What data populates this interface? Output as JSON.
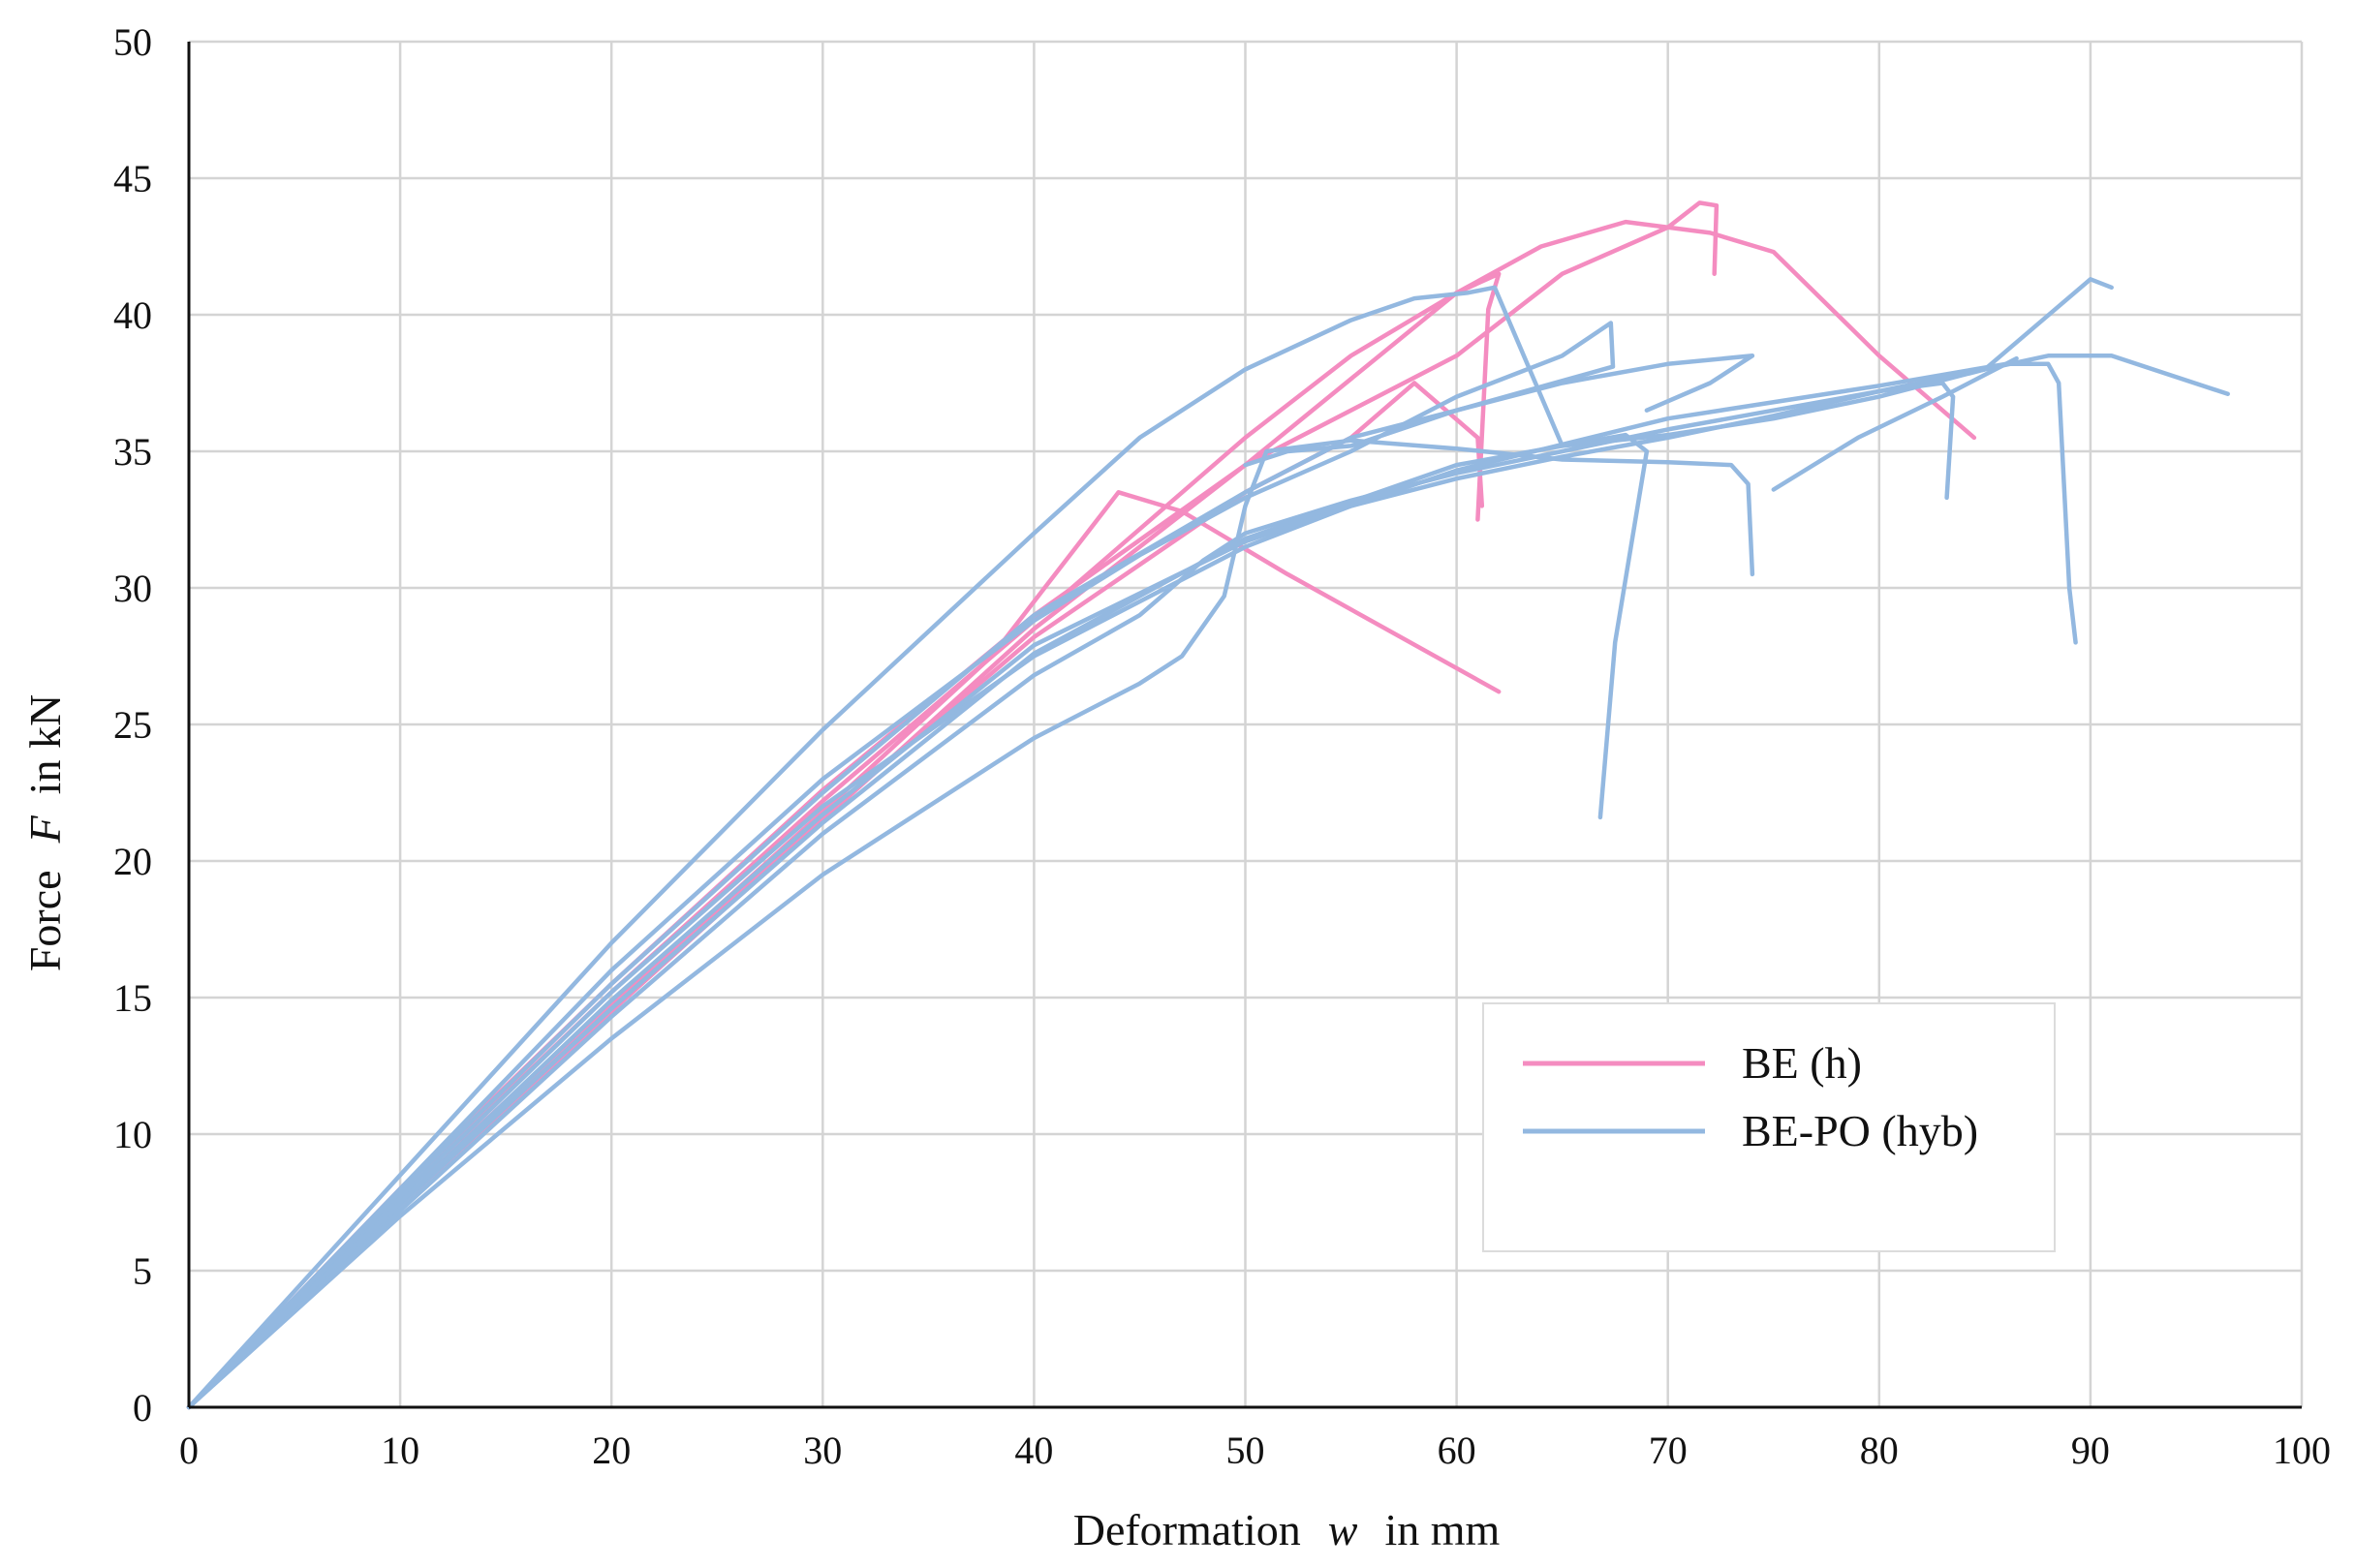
{
  "chart_data": {
    "type": "line",
    "title": "",
    "xlabel": {
      "prefix": "Deformation",
      "symbol": "w",
      "suffix": "in mm"
    },
    "ylabel": {
      "prefix": "Force",
      "symbol": "F",
      "suffix": "in kN"
    },
    "xlim": [
      0,
      100
    ],
    "ylim": [
      0,
      50
    ],
    "xticks": [
      0,
      10,
      20,
      30,
      40,
      50,
      60,
      70,
      80,
      90,
      100
    ],
    "yticks": [
      0,
      5,
      10,
      15,
      20,
      25,
      30,
      35,
      40,
      45,
      50
    ],
    "grid": true,
    "legend": {
      "placement": "lower-right",
      "entries": [
        {
          "label": "BE (h)",
          "color": "#f48cc0"
        },
        {
          "label": "BE-PO (hyb)",
          "color": "#93b8e0"
        }
      ]
    },
    "series": [
      {
        "name": "BE (h)",
        "color": "#f48cc0",
        "points": [
          [
            0,
            0
          ],
          [
            10,
            8
          ],
          [
            20,
            15.5
          ],
          [
            30,
            22.6
          ],
          [
            40,
            29
          ],
          [
            50,
            34.5
          ],
          [
            60,
            40.8
          ],
          [
            62,
            41.5
          ],
          [
            61.5,
            40.2
          ],
          [
            61,
            32.5
          ]
        ]
      },
      {
        "name": "BE (h)",
        "color": "#f48cc0",
        "points": [
          [
            0,
            0
          ],
          [
            10,
            7.6
          ],
          [
            20,
            14.8
          ],
          [
            30,
            21.8
          ],
          [
            38,
            27.5
          ],
          [
            44,
            33.5
          ],
          [
            47,
            32.8
          ],
          [
            52,
            30.5
          ],
          [
            62,
            26.2
          ]
        ]
      },
      {
        "name": "BE (h)",
        "color": "#f48cc0",
        "points": [
          [
            0,
            0
          ],
          [
            10,
            7.4
          ],
          [
            20,
            14.5
          ],
          [
            30,
            21.5
          ],
          [
            40,
            28.5
          ],
          [
            50,
            34.5
          ],
          [
            60,
            38.5
          ],
          [
            65,
            41.5
          ],
          [
            70,
            43.2
          ],
          [
            71.5,
            44.1
          ],
          [
            72.3,
            44
          ],
          [
            72.2,
            41.5
          ]
        ]
      },
      {
        "name": "BE (h)",
        "color": "#f48cc0",
        "points": [
          [
            0,
            0
          ],
          [
            10,
            7.8
          ],
          [
            20,
            15.2
          ],
          [
            30,
            22.2
          ],
          [
            40,
            28.8
          ],
          [
            50,
            35.5
          ],
          [
            55,
            38.5
          ],
          [
            60,
            40.8
          ],
          [
            64,
            42.5
          ],
          [
            68,
            43.4
          ],
          [
            72,
            43
          ],
          [
            75,
            42.3
          ],
          [
            80,
            38.5
          ],
          [
            84.5,
            35.5
          ]
        ]
      },
      {
        "name": "BE (h)",
        "color": "#f48cc0",
        "points": [
          [
            0,
            0
          ],
          [
            10,
            7.5
          ],
          [
            20,
            14.7
          ],
          [
            30,
            21.6
          ],
          [
            40,
            28.2
          ],
          [
            50,
            33.5
          ],
          [
            55,
            35.5
          ],
          [
            58,
            37.5
          ],
          [
            61,
            35.5
          ],
          [
            61.2,
            33
          ]
        ]
      },
      {
        "name": "BE-PO (hyb)",
        "color": "#93b8e0",
        "points": [
          [
            0,
            0
          ],
          [
            10,
            8.5
          ],
          [
            20,
            17
          ],
          [
            30,
            24.8
          ],
          [
            40,
            32
          ],
          [
            45,
            35.5
          ],
          [
            50,
            38
          ],
          [
            55,
            39.8
          ],
          [
            58,
            40.6
          ],
          [
            60.5,
            40.8
          ],
          [
            61.8,
            41
          ],
          [
            65,
            35.2
          ],
          [
            70,
            35.6
          ],
          [
            75,
            36.2
          ],
          [
            80,
            37
          ],
          [
            85,
            38
          ],
          [
            88,
            38.5
          ],
          [
            91,
            38.5
          ],
          [
            96.5,
            37.1
          ]
        ]
      },
      {
        "name": "BE-PO (hyb)",
        "color": "#93b8e0",
        "points": [
          [
            0,
            0
          ],
          [
            10,
            8
          ],
          [
            20,
            16
          ],
          [
            30,
            23
          ],
          [
            40,
            28.8
          ],
          [
            45,
            31.2
          ],
          [
            50,
            33.3
          ],
          [
            55,
            35
          ],
          [
            60,
            37
          ],
          [
            65,
            38.5
          ],
          [
            67.3,
            39.7
          ],
          [
            67.4,
            38.1
          ],
          [
            60,
            36.5
          ],
          [
            55,
            35.2
          ],
          [
            52,
            35
          ],
          [
            50,
            34.5
          ]
        ]
      },
      {
        "name": "BE-PO (hyb)",
        "color": "#93b8e0",
        "points": [
          [
            0,
            0
          ],
          [
            10,
            7.7
          ],
          [
            20,
            15.2
          ],
          [
            30,
            22
          ],
          [
            40,
            27.5
          ],
          [
            50,
            31.5
          ],
          [
            55,
            33
          ],
          [
            60,
            34
          ],
          [
            65,
            34.8
          ],
          [
            70,
            35.5
          ],
          [
            75,
            36.3
          ],
          [
            80,
            37.2
          ],
          [
            85,
            38
          ],
          [
            90,
            41.3
          ],
          [
            91,
            41
          ]
        ]
      },
      {
        "name": "BE-PO (hyb)",
        "color": "#93b8e0",
        "points": [
          [
            0,
            0
          ],
          [
            10,
            7
          ],
          [
            20,
            13.5
          ],
          [
            30,
            19.5
          ],
          [
            40,
            24.5
          ],
          [
            45,
            26.5
          ],
          [
            47,
            27.5
          ],
          [
            49,
            29.7
          ],
          [
            50,
            33
          ],
          [
            51,
            35
          ],
          [
            55,
            35.4
          ],
          [
            60,
            35.1
          ],
          [
            65,
            34.7
          ],
          [
            70,
            34.6
          ],
          [
            73,
            34.5
          ],
          [
            73.8,
            33.8
          ],
          [
            74,
            30.5
          ]
        ]
      },
      {
        "name": "BE-PO (hyb)",
        "color": "#93b8e0",
        "points": [
          [
            0,
            0
          ],
          [
            10,
            7.2
          ],
          [
            20,
            14.3
          ],
          [
            30,
            21
          ],
          [
            40,
            26.8
          ],
          [
            45,
            29
          ],
          [
            48,
            31
          ],
          [
            50,
            32
          ],
          [
            55,
            33.2
          ],
          [
            60,
            34.2
          ],
          [
            65,
            35
          ],
          [
            70,
            35.8
          ],
          [
            75,
            36.5
          ],
          [
            80,
            37.2
          ],
          [
            83,
            37.5
          ],
          [
            83.5,
            37
          ],
          [
            83.2,
            33.3
          ]
        ]
      },
      {
        "name": "BE-PO (hyb)",
        "color": "#93b8e0",
        "points": [
          [
            0,
            0
          ],
          [
            10,
            7.4
          ],
          [
            20,
            14.6
          ],
          [
            30,
            21.4
          ],
          [
            40,
            27.6
          ],
          [
            50,
            31.8
          ],
          [
            60,
            34.5
          ],
          [
            65,
            35.2
          ],
          [
            68,
            35.6
          ],
          [
            69,
            35
          ],
          [
            67.5,
            28
          ],
          [
            66.8,
            21.6
          ]
        ]
      },
      {
        "name": "BE-PO (hyb)",
        "color": "#93b8e0",
        "points": [
          [
            0,
            0
          ],
          [
            10,
            7.9
          ],
          [
            20,
            15.5
          ],
          [
            30,
            22.5
          ],
          [
            40,
            29
          ],
          [
            50,
            33.5
          ],
          [
            55,
            35.5
          ],
          [
            60,
            36.5
          ],
          [
            65,
            37.5
          ],
          [
            70,
            38.2
          ],
          [
            74,
            38.5
          ],
          [
            72,
            37.5
          ],
          [
            69,
            36.5
          ]
        ]
      },
      {
        "name": "BE-PO (hyb)",
        "color": "#93b8e0",
        "points": [
          [
            0,
            0
          ],
          [
            10,
            7.5
          ],
          [
            20,
            14.9
          ],
          [
            30,
            21.7
          ],
          [
            40,
            27.9
          ],
          [
            50,
            31.7
          ],
          [
            60,
            34.3
          ],
          [
            70,
            36.2
          ],
          [
            80,
            37.4
          ],
          [
            86,
            38.2
          ],
          [
            88,
            38.2
          ],
          [
            88.5,
            37.5
          ],
          [
            89,
            30
          ],
          [
            89.3,
            28
          ]
        ]
      },
      {
        "name": "BE-PO (hyb)",
        "color": "#93b8e0",
        "points": [
          [
            75,
            33.6
          ],
          [
            79,
            35.5
          ],
          [
            83,
            37
          ],
          [
            86.5,
            38.4
          ]
        ]
      }
    ]
  }
}
